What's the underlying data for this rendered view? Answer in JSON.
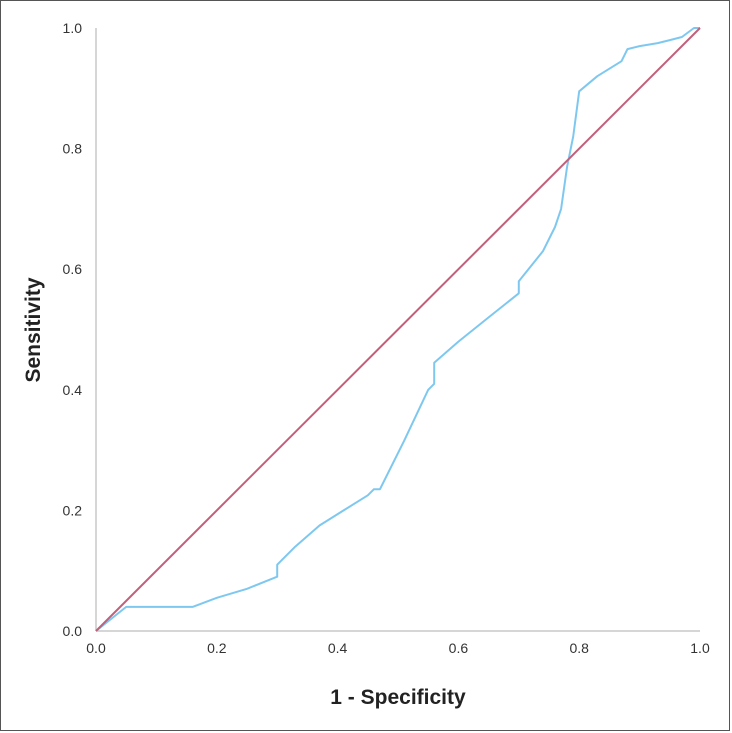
{
  "chart_data": {
    "type": "line",
    "xlabel": "1 - Specificity",
    "ylabel": "Sensitivity",
    "xlim": [
      0.0,
      1.0
    ],
    "ylim": [
      0.0,
      1.0
    ],
    "x_ticks": [
      "0.0",
      "0.2",
      "0.4",
      "0.6",
      "0.8",
      "1.0"
    ],
    "y_ticks": [
      "0.0",
      "0.2",
      "0.4",
      "0.6",
      "0.8",
      "1.0"
    ],
    "grid": false,
    "series": [
      {
        "color": "#7ec8f0",
        "x": [
          0.0,
          0.05,
          0.16,
          0.2,
          0.25,
          0.3,
          0.3,
          0.33,
          0.37,
          0.41,
          0.45,
          0.46,
          0.47,
          0.51,
          0.55,
          0.56,
          0.56,
          0.6,
          0.65,
          0.7,
          0.7,
          0.74,
          0.76,
          0.77,
          0.78,
          0.79,
          0.8,
          0.83,
          0.87,
          0.88,
          0.9,
          0.93,
          0.95,
          0.97,
          0.99,
          1.0
        ],
        "y": [
          0.0,
          0.04,
          0.04,
          0.055,
          0.07,
          0.09,
          0.11,
          0.14,
          0.175,
          0.2,
          0.225,
          0.235,
          0.235,
          0.315,
          0.4,
          0.41,
          0.445,
          0.48,
          0.52,
          0.56,
          0.58,
          0.63,
          0.67,
          0.7,
          0.77,
          0.82,
          0.895,
          0.92,
          0.945,
          0.965,
          0.97,
          0.975,
          0.98,
          0.985,
          1.0,
          1.0
        ]
      },
      {
        "color": "#c2607a",
        "x": [
          0.0,
          1.0
        ],
        "y": [
          0.0,
          1.0
        ]
      }
    ]
  }
}
